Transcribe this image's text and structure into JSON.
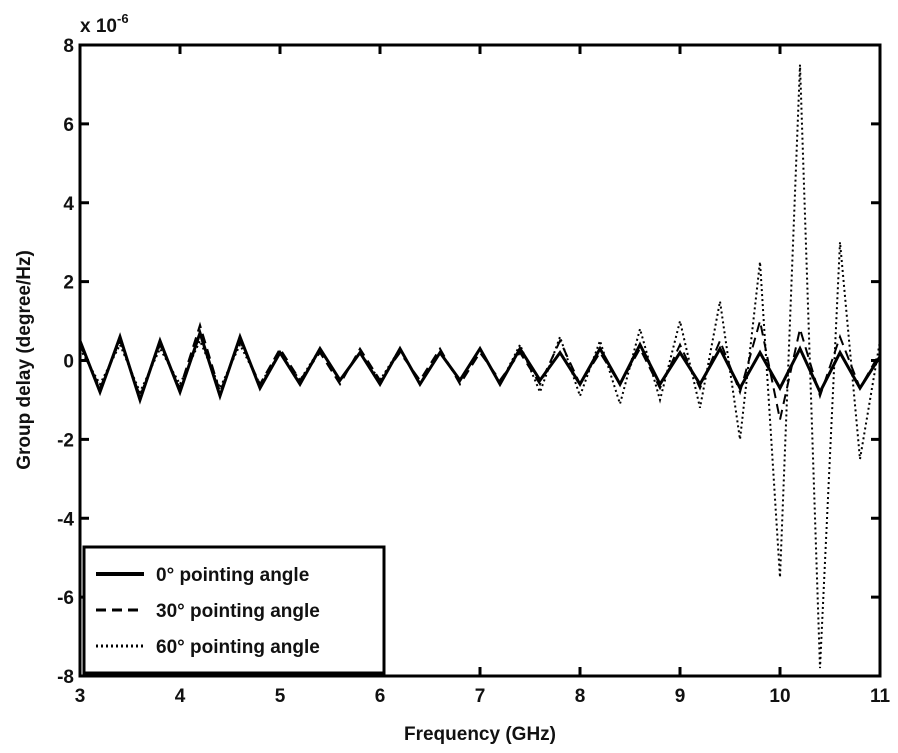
{
  "chart_data": {
    "type": "line",
    "xlabel": "Frequency (GHz)",
    "ylabel": "Group delay (degree/Hz)",
    "y_multiplier": {
      "base": "x 10",
      "exponent": "-6"
    },
    "xlim": [
      3,
      11
    ],
    "ylim": [
      -8,
      8
    ],
    "xticks": [
      3,
      4,
      5,
      6,
      7,
      8,
      9,
      10,
      11
    ],
    "yticks": [
      -8,
      -6,
      -4,
      -2,
      0,
      2,
      4,
      6,
      8
    ],
    "legend": "lower left",
    "x": [
      3,
      3.2,
      3.4,
      3.6,
      3.8,
      4,
      4.2,
      4.4,
      4.6,
      4.8,
      5,
      5.2,
      5.4,
      5.6,
      5.8,
      6,
      6.2,
      6.4,
      6.6,
      6.8,
      7,
      7.2,
      7.4,
      7.6,
      7.8,
      8,
      8.2,
      8.4,
      8.6,
      8.8,
      9,
      9.2,
      9.4,
      9.6,
      9.8,
      10,
      10.2,
      10.4,
      10.6,
      10.8,
      11
    ],
    "series": [
      {
        "name": "0° pointing angle",
        "color": "#000000",
        "dash": "solid",
        "values": [
          0.5,
          -0.8,
          0.6,
          -1.0,
          0.5,
          -0.8,
          0.7,
          -0.9,
          0.6,
          -0.7,
          0.2,
          -0.6,
          0.3,
          -0.5,
          0.2,
          -0.6,
          0.3,
          -0.6,
          0.2,
          -0.5,
          0.3,
          -0.6,
          0.3,
          -0.5,
          0.2,
          -0.6,
          0.3,
          -0.6,
          0.4,
          -0.6,
          0.2,
          -0.6,
          0.3,
          -0.7,
          0.2,
          -0.7,
          0.3,
          -0.8,
          0.2,
          -0.7,
          0.1
        ]
      },
      {
        "name": "30° pointing angle",
        "color": "#000000",
        "dash": "dashed",
        "values": [
          0.4,
          -0.7,
          0.5,
          -0.9,
          0.4,
          -0.7,
          0.9,
          -0.8,
          0.5,
          -0.6,
          0.3,
          -0.5,
          0.2,
          -0.6,
          0.3,
          -0.5,
          0.2,
          -0.5,
          0.3,
          -0.6,
          0.2,
          -0.5,
          0.2,
          -0.6,
          0.5,
          -0.6,
          0.2,
          -0.6,
          0.3,
          -0.7,
          0.4,
          -0.7,
          0.5,
          -0.8,
          1.0,
          -1.5,
          0.8,
          -0.9,
          0.6,
          -0.7,
          0.2
        ]
      },
      {
        "name": "60° pointing angle",
        "color": "#000000",
        "dash": "dotted",
        "values": [
          0.3,
          -0.6,
          0.4,
          -0.8,
          0.3,
          -0.6,
          0.5,
          -0.7,
          0.4,
          -0.6,
          0.2,
          -0.5,
          0.3,
          -0.5,
          0.2,
          -0.5,
          0.3,
          -0.6,
          0.2,
          -0.5,
          0.3,
          -0.6,
          0.4,
          -0.8,
          0.6,
          -0.9,
          0.5,
          -1.1,
          0.8,
          -1.0,
          1.0,
          -1.2,
          1.5,
          -2.0,
          2.5,
          -5.5,
          7.5,
          -7.8,
          3.0,
          -2.5,
          0.5
        ]
      }
    ]
  }
}
